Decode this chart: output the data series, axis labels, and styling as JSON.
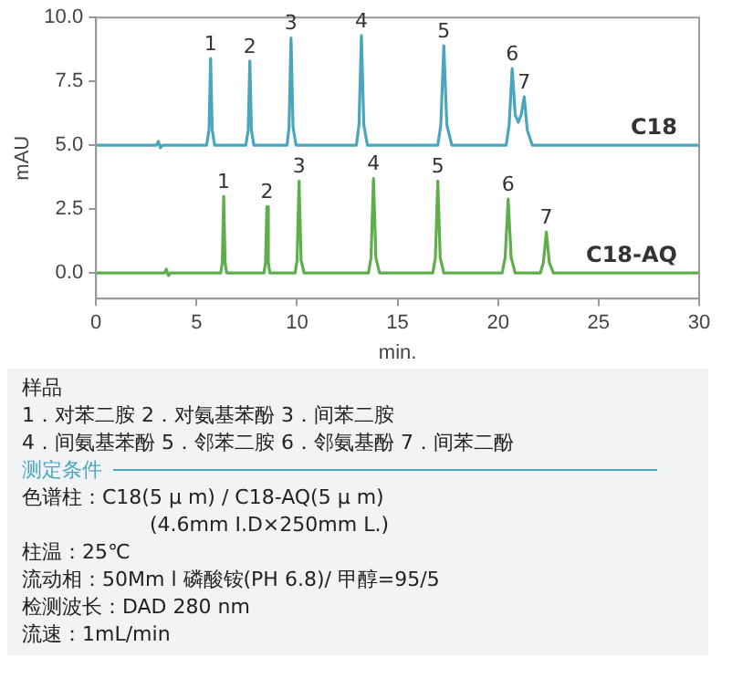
{
  "chart_data": {
    "type": "line",
    "xlabel": "min.",
    "ylabel": "mAU",
    "xlim": [
      0,
      30
    ],
    "xticks": [
      0,
      5,
      10,
      15,
      20,
      25,
      30
    ],
    "ylim": [
      -1,
      10
    ],
    "yticks": [
      {
        "value": 0,
        "label": "0.0"
      },
      {
        "value": 2.5,
        "label": "2.5"
      },
      {
        "value": 5,
        "label": "5.0"
      },
      {
        "value": 7.5,
        "label": "7.5"
      },
      {
        "value": 10,
        "label": "10.0"
      }
    ],
    "grid": false,
    "legend": false,
    "marker": "none",
    "line_style": "solid",
    "series": [
      {
        "name": "C18",
        "color": "#4aa6bf",
        "x": [
          0,
          3.0,
          3.1,
          3.2,
          3.3,
          5.5,
          5.62,
          5.7,
          5.78,
          5.9,
          7.45,
          7.57,
          7.65,
          7.73,
          7.85,
          9.5,
          9.6,
          9.7,
          9.8,
          9.95,
          12.95,
          13.08,
          13.2,
          13.32,
          13.5,
          17.0,
          17.15,
          17.3,
          17.45,
          17.7,
          20.4,
          20.55,
          20.7,
          20.85,
          21.0,
          21.15,
          21.3,
          21.45,
          21.7,
          30
        ],
        "values": [
          5,
          5,
          5.15,
          4.9,
          5,
          5,
          5.6,
          8.4,
          5.6,
          5,
          5,
          5.6,
          8.3,
          5.6,
          5,
          5,
          5.7,
          9.2,
          5.7,
          5,
          5,
          5.8,
          9.3,
          5.8,
          5,
          5,
          5.8,
          8.9,
          5.8,
          5,
          5,
          5.8,
          8.0,
          6.2,
          5.9,
          6.2,
          6.9,
          5.6,
          5,
          5
        ]
      },
      {
        "name": "C18-AQ",
        "color": "#5fae4c",
        "x": [
          0,
          3.4,
          3.5,
          3.6,
          3.7,
          6.2,
          6.28,
          6.35,
          6.42,
          6.5,
          8.35,
          8.43,
          8.5,
          8.57,
          8.65,
          9.9,
          10.0,
          10.1,
          10.2,
          10.35,
          13.55,
          13.68,
          13.8,
          13.92,
          14.1,
          16.75,
          16.88,
          17.0,
          17.12,
          17.3,
          20.2,
          20.35,
          20.5,
          20.65,
          20.85,
          22.1,
          22.25,
          22.4,
          22.55,
          22.75,
          30
        ],
        "values": [
          0,
          0,
          0.15,
          -0.1,
          0,
          0,
          0.4,
          3.0,
          0.4,
          0,
          0,
          0.4,
          2.6,
          0.4,
          0,
          0,
          0.5,
          3.6,
          0.5,
          0,
          0,
          0.6,
          3.7,
          0.6,
          0,
          0,
          0.6,
          3.6,
          0.6,
          0,
          0,
          0.6,
          2.9,
          0.6,
          0,
          0,
          0.4,
          1.6,
          0.4,
          0,
          0
        ]
      }
    ],
    "annotations": [
      {
        "text": "1",
        "x": 5.7,
        "y": 8.4
      },
      {
        "text": "2",
        "x": 7.65,
        "y": 8.3
      },
      {
        "text": "3",
        "x": 9.7,
        "y": 9.2
      },
      {
        "text": "4",
        "x": 13.2,
        "y": 9.3
      },
      {
        "text": "5",
        "x": 17.3,
        "y": 8.9
      },
      {
        "text": "6",
        "x": 20.7,
        "y": 8.0
      },
      {
        "text": "7",
        "x": 21.3,
        "y": 6.9
      },
      {
        "text": "1",
        "x": 6.35,
        "y": 3.0
      },
      {
        "text": "2",
        "x": 8.5,
        "y": 2.6
      },
      {
        "text": "3",
        "x": 10.1,
        "y": 3.6
      },
      {
        "text": "4",
        "x": 13.8,
        "y": 3.7
      },
      {
        "text": "5",
        "x": 17.0,
        "y": 3.6
      },
      {
        "text": "6",
        "x": 20.5,
        "y": 2.9
      },
      {
        "text": "7",
        "x": 22.4,
        "y": 1.6
      },
      "样品",
      "1．对苯二胺 2．对氨基苯酚 3．间苯二胺",
      "4．间氨基苯酚 5．邻苯二胺 6．邻氨基酚 7．间苯二酚",
      "测定条件",
      "色谱柱：C18(5 μ m) / C18-AQ(5 μ m)",
      "(4.6mm I.D×250mm L.)",
      "柱温：25℃",
      "流动相：50Mm l 磷酸铵(PH 6.8)/ 甲醇=95/5",
      "检测波长：DAD 280 nm",
      "流速：1mL/min"
    ]
  }
}
